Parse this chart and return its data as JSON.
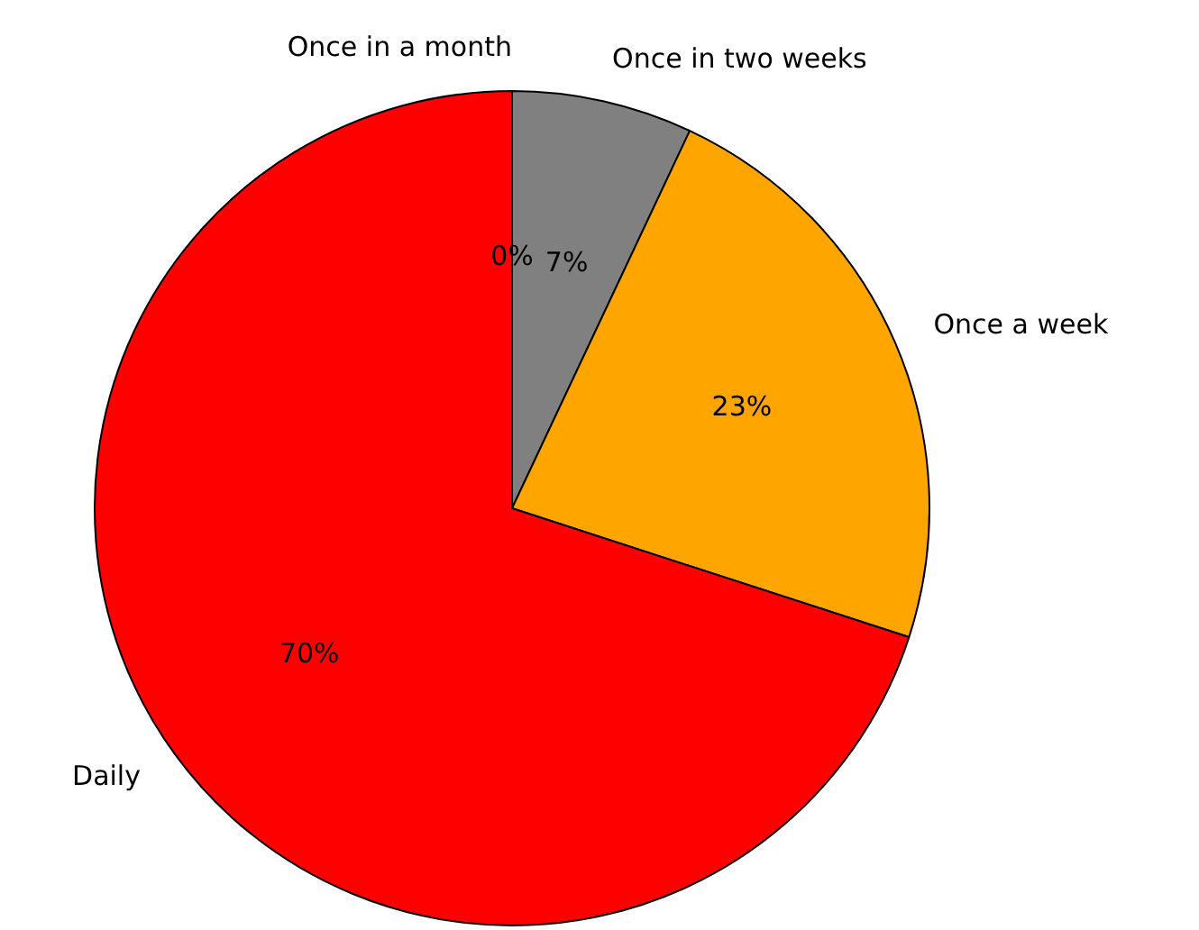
{
  "chart_data": {
    "type": "pie",
    "categories": [
      "Once in a month",
      "Once in two weeks",
      "Once a week",
      "Daily"
    ],
    "values": [
      0,
      7,
      23,
      70
    ],
    "colors": [
      "#0000ff",
      "#808080",
      "#ffa500",
      "#ff0000"
    ],
    "value_labels": [
      "0%",
      "7%",
      "23%",
      "70%"
    ]
  }
}
